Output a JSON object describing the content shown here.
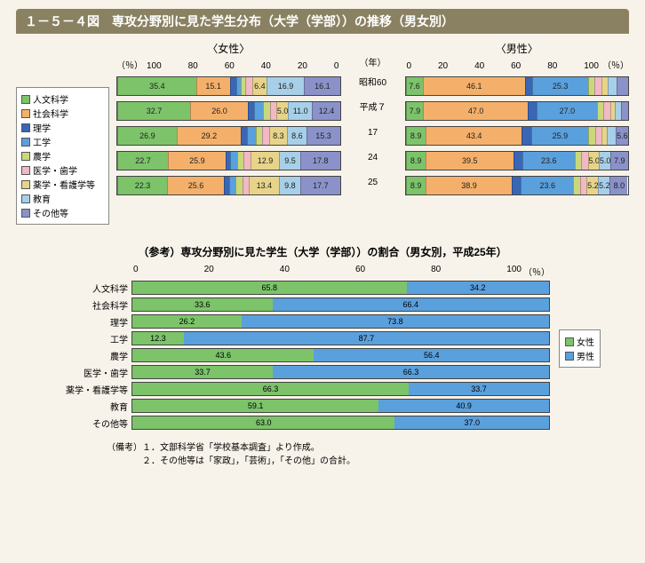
{
  "title": "１－５－４図　専攻分野別に見た学生分布（大学（学部））の推移（男女別）",
  "colors": {
    "人文科学": "#7cc36a",
    "社会科学": "#f4b06a",
    "理学": "#3a66b5",
    "工学": "#5aa0dd",
    "農学": "#c9d97a",
    "医学・歯学": "#f2b8c5",
    "薬学・看護学等": "#e7d489",
    "教育": "#a7cfe8",
    "その他等": "#8a92c9"
  },
  "legend": [
    "人文科学",
    "社会科学",
    "理学",
    "工学",
    "農学",
    "医学・歯学",
    "薬学・看護学等",
    "教育",
    "その他等"
  ],
  "female_label": "〈女性〉",
  "male_label": "〈男性〉",
  "pct_label_l": "（％）",
  "pct_label_r": "（％）",
  "year_head": "（年）",
  "axis_ticks_100_0": [
    "100",
    "80",
    "60",
    "40",
    "20",
    "0"
  ],
  "axis_ticks_0_100": [
    "0",
    "20",
    "40",
    "60",
    "80",
    "100"
  ],
  "years": [
    "昭和60",
    "平成７",
    "17",
    "24",
    "25"
  ],
  "female_rows": [
    {
      "segs": [
        {
          "k": "その他等",
          "v": 16.1,
          "t": "16.1"
        },
        {
          "k": "教育",
          "v": 16.9,
          "t": "16.9"
        },
        {
          "k": "薬学・看護学等",
          "v": 6.4,
          "t": "6.4"
        },
        {
          "k": "医学・歯学",
          "v": 3,
          "t": ""
        },
        {
          "k": "農学",
          "v": 2,
          "t": ""
        },
        {
          "k": "工学",
          "v": 2,
          "t": ""
        },
        {
          "k": "理学",
          "v": 3.1,
          "t": ""
        },
        {
          "k": "社会科学",
          "v": 15.1,
          "t": "15.1"
        },
        {
          "k": "人文科学",
          "v": 35.4,
          "t": "35.4"
        }
      ]
    },
    {
      "segs": [
        {
          "k": "その他等",
          "v": 12.4,
          "t": "12.4"
        },
        {
          "k": "教育",
          "v": 11.0,
          "t": "11.0"
        },
        {
          "k": "薬学・看護学等",
          "v": 5.0,
          "t": "5.0"
        },
        {
          "k": "医学・歯学",
          "v": 3,
          "t": ""
        },
        {
          "k": "農学",
          "v": 3,
          "t": ""
        },
        {
          "k": "工学",
          "v": 4,
          "t": ""
        },
        {
          "k": "理学",
          "v": 2.9,
          "t": ""
        },
        {
          "k": "社会科学",
          "v": 26.0,
          "t": "26.0"
        },
        {
          "k": "人文科学",
          "v": 32.7,
          "t": "32.7"
        }
      ]
    },
    {
      "segs": [
        {
          "k": "その他等",
          "v": 15.3,
          "t": "15.3"
        },
        {
          "k": "教育",
          "v": 8.6,
          "t": "8.6"
        },
        {
          "k": "薬学・看護学等",
          "v": 8.3,
          "t": "8.3"
        },
        {
          "k": "医学・歯学",
          "v": 3,
          "t": ""
        },
        {
          "k": "農学",
          "v": 3,
          "t": ""
        },
        {
          "k": "工学",
          "v": 4,
          "t": ""
        },
        {
          "k": "理学",
          "v": 2.7,
          "t": ""
        },
        {
          "k": "社会科学",
          "v": 29.2,
          "t": "29.2"
        },
        {
          "k": "人文科学",
          "v": 26.9,
          "t": "26.9"
        }
      ]
    },
    {
      "segs": [
        {
          "k": "その他等",
          "v": 17.8,
          "t": "17.8"
        },
        {
          "k": "教育",
          "v": 9.5,
          "t": "9.5"
        },
        {
          "k": "薬学・看護学等",
          "v": 12.9,
          "t": "12.9"
        },
        {
          "k": "医学・歯学",
          "v": 3,
          "t": ""
        },
        {
          "k": "農学",
          "v": 3,
          "t": ""
        },
        {
          "k": "工学",
          "v": 3,
          "t": ""
        },
        {
          "k": "理学",
          "v": 2.2,
          "t": ""
        },
        {
          "k": "社会科学",
          "v": 25.9,
          "t": "25.9"
        },
        {
          "k": "人文科学",
          "v": 22.7,
          "t": "22.7"
        }
      ]
    },
    {
      "segs": [
        {
          "k": "その他等",
          "v": 17.7,
          "t": "17.7"
        },
        {
          "k": "教育",
          "v": 9.8,
          "t": "9.8"
        },
        {
          "k": "薬学・看護学等",
          "v": 13.4,
          "t": "13.4"
        },
        {
          "k": "医学・歯学",
          "v": 3,
          "t": ""
        },
        {
          "k": "農学",
          "v": 3,
          "t": ""
        },
        {
          "k": "工学",
          "v": 3,
          "t": ""
        },
        {
          "k": "理学",
          "v": 2.2,
          "t": ""
        },
        {
          "k": "社会科学",
          "v": 25.6,
          "t": "25.6"
        },
        {
          "k": "人文科学",
          "v": 22.3,
          "t": "22.3"
        }
      ]
    }
  ],
  "male_rows": [
    {
      "segs": [
        {
          "k": "人文科学",
          "v": 7.6,
          "t": "7.6"
        },
        {
          "k": "社会科学",
          "v": 46.1,
          "t": "46.1"
        },
        {
          "k": "理学",
          "v": 3,
          "t": ""
        },
        {
          "k": "工学",
          "v": 25.3,
          "t": "25.3"
        },
        {
          "k": "農学",
          "v": 3,
          "t": ""
        },
        {
          "k": "医学・歯学",
          "v": 3,
          "t": ""
        },
        {
          "k": "薬学・看護学等",
          "v": 3,
          "t": ""
        },
        {
          "k": "教育",
          "v": 4,
          "t": ""
        },
        {
          "k": "その他等",
          "v": 5,
          "t": ""
        }
      ]
    },
    {
      "segs": [
        {
          "k": "人文科学",
          "v": 7.9,
          "t": "7.9"
        },
        {
          "k": "社会科学",
          "v": 47.0,
          "t": "47.0"
        },
        {
          "k": "理学",
          "v": 4,
          "t": ""
        },
        {
          "k": "工学",
          "v": 27.0,
          "t": "27.0"
        },
        {
          "k": "農学",
          "v": 3,
          "t": ""
        },
        {
          "k": "医学・歯学",
          "v": 3,
          "t": ""
        },
        {
          "k": "薬学・看護学等",
          "v": 2,
          "t": ""
        },
        {
          "k": "教育",
          "v": 3,
          "t": ""
        },
        {
          "k": "その他等",
          "v": 3.1,
          "t": ""
        }
      ]
    },
    {
      "segs": [
        {
          "k": "人文科学",
          "v": 8.9,
          "t": "8.9"
        },
        {
          "k": "社会科学",
          "v": 43.4,
          "t": "43.4"
        },
        {
          "k": "理学",
          "v": 4,
          "t": ""
        },
        {
          "k": "工学",
          "v": 25.9,
          "t": "25.9"
        },
        {
          "k": "農学",
          "v": 3,
          "t": ""
        },
        {
          "k": "医学・歯学",
          "v": 3,
          "t": ""
        },
        {
          "k": "薬学・看護学等",
          "v": 2.2,
          "t": ""
        },
        {
          "k": "教育",
          "v": 4,
          "t": ""
        },
        {
          "k": "その他等",
          "v": 5.6,
          "t": "5.6"
        }
      ]
    },
    {
      "segs": [
        {
          "k": "人文科学",
          "v": 8.9,
          "t": "8.9"
        },
        {
          "k": "社会科学",
          "v": 39.5,
          "t": "39.5"
        },
        {
          "k": "理学",
          "v": 4,
          "t": ""
        },
        {
          "k": "工学",
          "v": 23.6,
          "t": "23.6"
        },
        {
          "k": "農学",
          "v": 3,
          "t": ""
        },
        {
          "k": "医学・歯学",
          "v": 3,
          "t": ""
        },
        {
          "k": "薬学・看護学等",
          "v": 5.0,
          "t": "5.0"
        },
        {
          "k": "教育",
          "v": 5.0,
          "t": "5.0"
        },
        {
          "k": "その他等",
          "v": 7.9,
          "t": "7.9"
        }
      ]
    },
    {
      "segs": [
        {
          "k": "人文科学",
          "v": 8.9,
          "t": "8.9"
        },
        {
          "k": "社会科学",
          "v": 38.9,
          "t": "38.9"
        },
        {
          "k": "理学",
          "v": 4,
          "t": ""
        },
        {
          "k": "工学",
          "v": 23.6,
          "t": "23.6"
        },
        {
          "k": "農学",
          "v": 3,
          "t": ""
        },
        {
          "k": "医学・歯学",
          "v": 3,
          "t": ""
        },
        {
          "k": "薬学・看護学等",
          "v": 5.2,
          "t": "5.2"
        },
        {
          "k": "教育",
          "v": 5.2,
          "t": "5.2"
        },
        {
          "k": "その他等",
          "v": 8.0,
          "t": "8.0"
        }
      ]
    }
  ],
  "ref_title": "（参考）専攻分野別に見た学生（大学（学部））の割合（男女別，平成25年）",
  "ref_axis": [
    "0",
    "20",
    "40",
    "60",
    "80",
    "100"
  ],
  "ref_unit": "（％）",
  "ref_legend": [
    {
      "k": "女性",
      "c": "#7cc36a"
    },
    {
      "k": "男性",
      "c": "#5aa0dd"
    }
  ],
  "ref_rows": [
    {
      "label": "人文科学",
      "f": 65.8,
      "m": 34.2
    },
    {
      "label": "社会科学",
      "f": 33.6,
      "m": 66.4
    },
    {
      "label": "理学",
      "f": 26.2,
      "m": 73.8
    },
    {
      "label": "工学",
      "f": 12.3,
      "m": 87.7
    },
    {
      "label": "農学",
      "f": 43.6,
      "m": 56.4
    },
    {
      "label": "医学・歯学",
      "f": 33.7,
      "m": 66.3
    },
    {
      "label": "薬学・看護学等",
      "f": 66.3,
      "m": 33.7
    },
    {
      "label": "教育",
      "f": 59.1,
      "m": 40.9
    },
    {
      "label": "その他等",
      "f": 63.0,
      "m": 37.0
    }
  ],
  "notes": [
    "（備考）１．文部科学省「学校基本調査」より作成。",
    "　　　　２．その他等は「家政」，「芸術」，「その他」の合計。"
  ]
}
